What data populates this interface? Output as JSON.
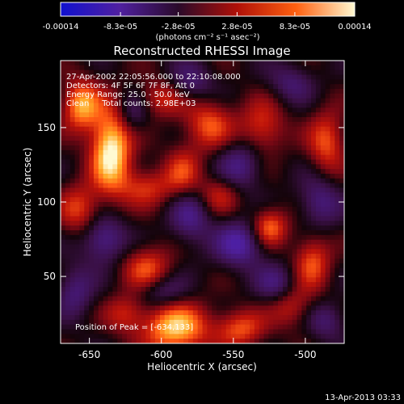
{
  "chart_data": {
    "type": "heatmap",
    "title": "Reconstructed RHESSI Image",
    "xlabel": "Heliocentric X (arcsec)",
    "ylabel": "Heliocentric Y (arcsec)",
    "xlim": [
      -670,
      -473
    ],
    "ylim": [
      5,
      195
    ],
    "x_ticks": [
      -650,
      -600,
      -550,
      -500
    ],
    "y_ticks": [
      50,
      100,
      150
    ],
    "colorbar": {
      "ticks": [
        "-0.00014",
        "-8.3e-05",
        "-2.8e-05",
        "2.8e-05",
        "8.3e-05",
        "0.00014"
      ],
      "tick_values": [
        -0.00014,
        -8.3e-05,
        -2.8e-05,
        2.8e-05,
        8.3e-05,
        0.00014
      ],
      "range": [
        -0.00014,
        0.00014
      ],
      "unit_label": "(photons cm⁻² s⁻¹ asec⁻²)",
      "colors": [
        "#1010d0",
        "#5020a0",
        "#2a0a2a",
        "#b01008",
        "#ff6010",
        "#fff8d0"
      ]
    },
    "annotations": [
      "27-Apr-2002 22:05:56.000 to 22:10:08.000",
      "Detectors: 4F 5F 6F 7F 8F, Att 0",
      "Energy Range: 25.0 - 50.0 keV",
      "Clean     Total counts: 2.98E+03"
    ],
    "peak_label": "Position of Peak = [-634,133]",
    "peak": [
      -634,
      133
    ],
    "features": [
      {
        "x": -635,
        "y": 135,
        "v": 1.0,
        "sx": 10,
        "sy": 20
      },
      {
        "x": -656,
        "y": 165,
        "v": 0.75,
        "sx": 9,
        "sy": 12
      },
      {
        "x": -525,
        "y": 83,
        "v": 0.65,
        "sx": 9,
        "sy": 9
      },
      {
        "x": -590,
        "y": 15,
        "v": 0.85,
        "sx": 16,
        "sy": 12
      },
      {
        "x": -545,
        "y": 15,
        "v": 0.55,
        "sx": 12,
        "sy": 9
      },
      {
        "x": -567,
        "y": 152,
        "v": 0.55,
        "sx": 12,
        "sy": 12
      },
      {
        "x": -530,
        "y": 150,
        "v": 0.5,
        "sx": 11,
        "sy": 13
      },
      {
        "x": -610,
        "y": 55,
        "v": 0.55,
        "sx": 12,
        "sy": 11
      },
      {
        "x": -657,
        "y": 95,
        "v": 0.5,
        "sx": 10,
        "sy": 12
      },
      {
        "x": -495,
        "y": 60,
        "v": 0.55,
        "sx": 9,
        "sy": 13
      },
      {
        "x": -610,
        "y": 110,
        "v": 0.45,
        "sx": 13,
        "sy": 9
      },
      {
        "x": -585,
        "y": 120,
        "v": 0.45,
        "sx": 9,
        "sy": 12
      },
      {
        "x": -485,
        "y": 140,
        "v": 0.55,
        "sx": 9,
        "sy": 15
      },
      {
        "x": -560,
        "y": 105,
        "v": 0.4,
        "sx": 10,
        "sy": 9
      },
      {
        "x": -625,
        "y": 25,
        "v": 0.4,
        "sx": 10,
        "sy": 9
      },
      {
        "x": -510,
        "y": 30,
        "v": 0.4,
        "sx": 10,
        "sy": 10
      },
      {
        "x": -600,
        "y": 170,
        "v": 0.45,
        "sx": 12,
        "sy": 9
      },
      {
        "x": -545,
        "y": 72,
        "v": -0.6,
        "sx": 12,
        "sy": 11
      },
      {
        "x": -640,
        "y": 75,
        "v": -0.55,
        "sx": 11,
        "sy": 11
      },
      {
        "x": -580,
        "y": 90,
        "v": -0.45,
        "sx": 10,
        "sy": 13
      },
      {
        "x": -545,
        "y": 125,
        "v": -0.45,
        "sx": 11,
        "sy": 12
      },
      {
        "x": -490,
        "y": 100,
        "v": -0.45,
        "sx": 10,
        "sy": 12
      },
      {
        "x": -600,
        "y": 40,
        "v": -0.4,
        "sx": 12,
        "sy": 8
      },
      {
        "x": -520,
        "y": 45,
        "v": -0.4,
        "sx": 10,
        "sy": 9
      },
      {
        "x": -660,
        "y": 40,
        "v": -0.4,
        "sx": 9,
        "sy": 12
      },
      {
        "x": -580,
        "y": 180,
        "v": -0.4,
        "sx": 11,
        "sy": 9
      },
      {
        "x": -510,
        "y": 180,
        "v": -0.35,
        "sx": 11,
        "sy": 9
      },
      {
        "x": -620,
        "y": 160,
        "v": -0.35,
        "sx": 8,
        "sy": 10
      },
      {
        "x": -485,
        "y": 20,
        "v": -0.35,
        "sx": 9,
        "sy": 9
      }
    ]
  },
  "footer": {
    "timestamp": "13-Apr-2013 03:33"
  }
}
